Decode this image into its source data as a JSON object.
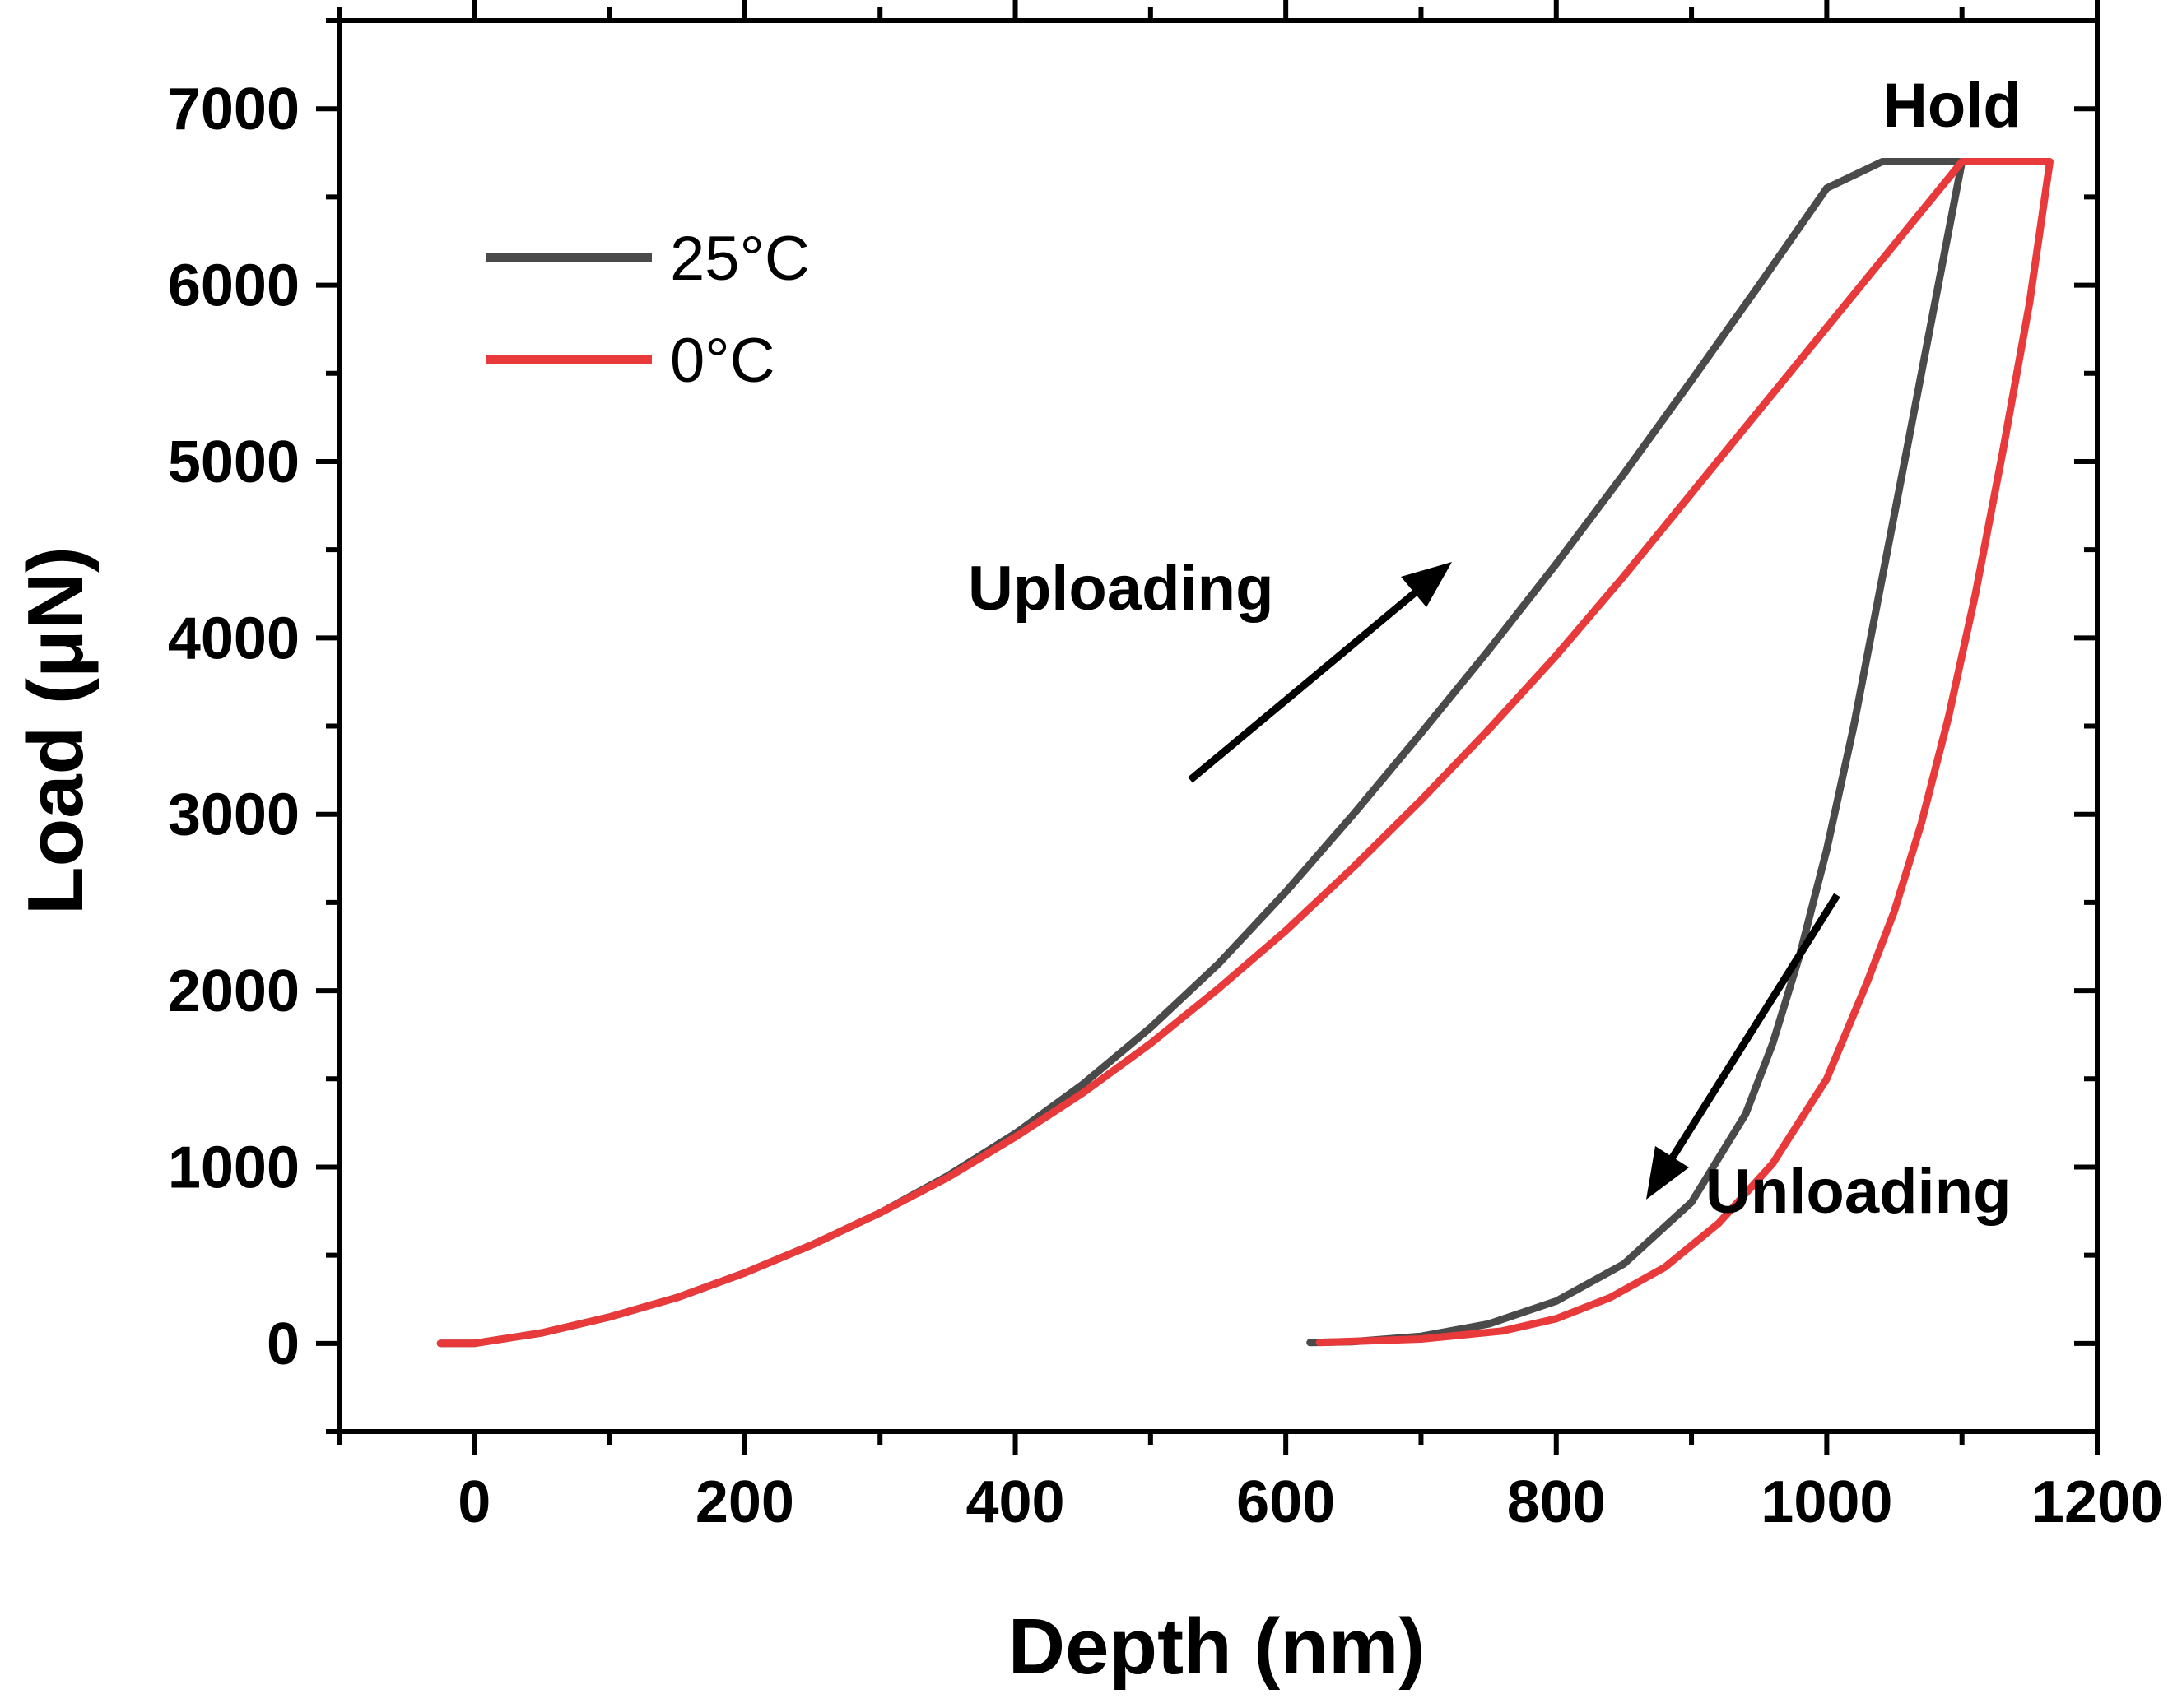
{
  "chart_data": {
    "type": "line",
    "title": "",
    "xlabel": "Depth (nm)",
    "ylabel": "Load (μN)",
    "xlim": [
      -100,
      1200
    ],
    "ylim": [
      -500,
      7500
    ],
    "grid": false,
    "x_ticks": [
      0,
      200,
      400,
      600,
      800,
      1000,
      1200
    ],
    "y_ticks": [
      0,
      1000,
      2000,
      3000,
      4000,
      5000,
      6000,
      7000
    ],
    "legend": {
      "placement": "top-left"
    },
    "series": [
      {
        "name": "25°C",
        "color": "#4a4a4a",
        "loading": [
          [
            -25,
            0
          ],
          [
            0,
            0
          ],
          [
            50,
            60
          ],
          [
            100,
            150
          ],
          [
            150,
            260
          ],
          [
            200,
            400
          ],
          [
            250,
            560
          ],
          [
            300,
            740
          ],
          [
            350,
            950
          ],
          [
            400,
            1190
          ],
          [
            450,
            1470
          ],
          [
            500,
            1790
          ],
          [
            550,
            2150
          ],
          [
            600,
            2560
          ],
          [
            650,
            3000
          ],
          [
            700,
            3460
          ],
          [
            750,
            3930
          ],
          [
            800,
            4420
          ],
          [
            850,
            4930
          ],
          [
            900,
            5460
          ],
          [
            950,
            6000
          ],
          [
            1000,
            6550
          ],
          [
            1041,
            6700
          ]
        ],
        "hold": [
          [
            1041,
            6700
          ],
          [
            1100,
            6700
          ]
        ],
        "unloading": [
          [
            1100,
            6700
          ],
          [
            1080,
            5900
          ],
          [
            1060,
            5100
          ],
          [
            1040,
            4300
          ],
          [
            1020,
            3500
          ],
          [
            1000,
            2800
          ],
          [
            980,
            2200
          ],
          [
            960,
            1700
          ],
          [
            940,
            1300
          ],
          [
            900,
            800
          ],
          [
            850,
            450
          ],
          [
            800,
            240
          ],
          [
            750,
            110
          ],
          [
            700,
            40
          ],
          [
            650,
            10
          ],
          [
            618,
            5
          ]
        ]
      },
      {
        "name": "0°C",
        "color": "#e8393b",
        "loading": [
          [
            -25,
            0
          ],
          [
            0,
            0
          ],
          [
            50,
            60
          ],
          [
            100,
            150
          ],
          [
            150,
            260
          ],
          [
            200,
            400
          ],
          [
            250,
            560
          ],
          [
            300,
            740
          ],
          [
            350,
            940
          ],
          [
            400,
            1170
          ],
          [
            450,
            1420
          ],
          [
            500,
            1700
          ],
          [
            550,
            2010
          ],
          [
            600,
            2340
          ],
          [
            650,
            2700
          ],
          [
            700,
            3080
          ],
          [
            750,
            3480
          ],
          [
            800,
            3900
          ],
          [
            850,
            4350
          ],
          [
            900,
            4820
          ],
          [
            950,
            5290
          ],
          [
            1000,
            5760
          ],
          [
            1050,
            6230
          ],
          [
            1100,
            6700
          ]
        ],
        "hold": [
          [
            1100,
            6700
          ],
          [
            1165,
            6700
          ]
        ],
        "unloading": [
          [
            1165,
            6700
          ],
          [
            1150,
            5900
          ],
          [
            1130,
            5050
          ],
          [
            1110,
            4250
          ],
          [
            1090,
            3550
          ],
          [
            1070,
            2950
          ],
          [
            1050,
            2450
          ],
          [
            1030,
            2050
          ],
          [
            1000,
            1500
          ],
          [
            960,
            1020
          ],
          [
            920,
            680
          ],
          [
            880,
            430
          ],
          [
            840,
            260
          ],
          [
            800,
            140
          ],
          [
            760,
            70
          ],
          [
            700,
            25
          ],
          [
            625,
            5
          ]
        ]
      }
    ],
    "annotations": [
      {
        "text": "Hold"
      },
      {
        "text": "Uploading"
      },
      {
        "text": "Unloading"
      }
    ]
  }
}
